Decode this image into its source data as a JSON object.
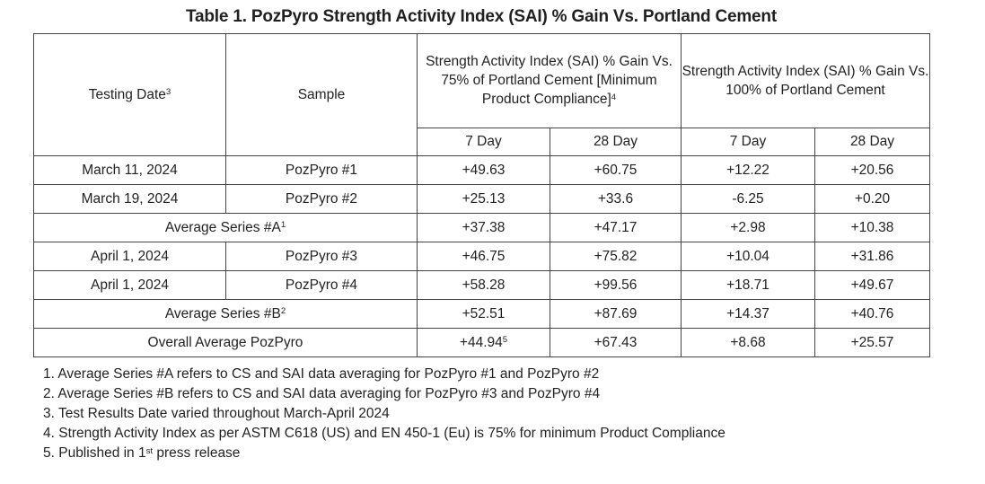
{
  "title": "Table 1. PozPyro Strength Activity Index (SAI) % Gain Vs. Portland Cement",
  "colors": {
    "background": "#ffffff",
    "text": "#222222",
    "border": "#444444"
  },
  "table": {
    "header": {
      "testing_date": {
        "text": "Testing Date",
        "sup": "3"
      },
      "sample": "Sample",
      "group_75": {
        "text": "Strength Activity Index (SAI) % Gain Vs. 75% of Portland Cement [Minimum Product Compliance]",
        "sup": "4"
      },
      "group_100": "Strength Activity Index (SAI) % Gain Vs. 100% of Portland Cement",
      "subheaders": [
        "7 Day",
        "28 Day",
        "7 Day",
        "28 Day"
      ]
    },
    "rows": [
      {
        "type": "data",
        "date": "March 11, 2024",
        "sample": "PozPyro #1",
        "values": [
          {
            "text": "+49.63"
          },
          {
            "text": "+60.75"
          },
          {
            "text": "+12.22"
          },
          {
            "text": "+20.56"
          }
        ]
      },
      {
        "type": "data",
        "date": "March 19, 2024",
        "sample": "PozPyro #2",
        "values": [
          {
            "text": "+25.13"
          },
          {
            "text": "+33.6"
          },
          {
            "text": "-6.25"
          },
          {
            "text": "+0.20"
          }
        ]
      },
      {
        "type": "summary",
        "label": "Average Series #A",
        "sup": "1",
        "values": [
          {
            "text": "+37.38"
          },
          {
            "text": "+47.17"
          },
          {
            "text": "+2.98"
          },
          {
            "text": "+10.38"
          }
        ]
      },
      {
        "type": "data",
        "date": "April 1, 2024",
        "sample": "PozPyro #3",
        "values": [
          {
            "text": "+46.75"
          },
          {
            "text": "+75.82"
          },
          {
            "text": "+10.04"
          },
          {
            "text": "+31.86"
          }
        ]
      },
      {
        "type": "data",
        "date": "April 1, 2024",
        "sample": "PozPyro #4",
        "values": [
          {
            "text": "+58.28",
            "bold": true
          },
          {
            "text": "+99.56",
            "bold": true
          },
          {
            "text": "+18.71",
            "bold": true
          },
          {
            "text": "+49.67",
            "bold": true
          }
        ]
      },
      {
        "type": "summary",
        "label": "Average Series #B",
        "sup": "2",
        "values": [
          {
            "text": "+52.51"
          },
          {
            "text": "+87.69"
          },
          {
            "text": "+14.37"
          },
          {
            "text": "+40.76"
          }
        ]
      },
      {
        "type": "summary",
        "label": "Overall Average PozPyro",
        "values": [
          {
            "text": "+44.94",
            "sup": "5",
            "bold": true
          },
          {
            "text": "+67.43",
            "bold": true
          },
          {
            "text": "+8.68"
          },
          {
            "text": "+25.57"
          }
        ]
      }
    ]
  },
  "footnotes": [
    [
      {
        "t": "1. Average Series #A refers to CS and SAI data averaging for PozPyro #1 and PozPyro #2"
      }
    ],
    [
      {
        "t": "2. Average Series #B refers to CS and SAI data averaging for PozPyro #3 and PozPyro #4"
      }
    ],
    [
      {
        "t": "3. Test Results Date varied throughout March-April 2024"
      }
    ],
    [
      {
        "t": "4. Strength Activity Index as per ASTM C618 (US) and EN 450-1 (Eu) is 75% for minimum Product Compliance"
      }
    ],
    [
      {
        "t": "5. Published in 1"
      },
      {
        "s": "st"
      },
      {
        "t": " press release"
      }
    ]
  ]
}
